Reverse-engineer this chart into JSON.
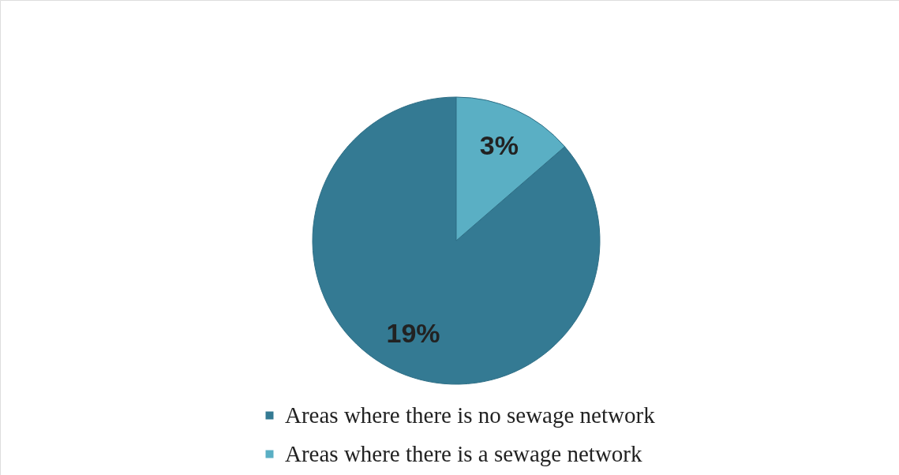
{
  "chart_data": {
    "type": "pie",
    "categories": [
      "Areas where there is no sewage network",
      "Areas where there is a sewage network"
    ],
    "values": [
      19,
      3
    ],
    "colors": [
      "#347a93",
      "#5aafc4"
    ],
    "value_labels": [
      "19%",
      "3%"
    ],
    "legend": "bottom"
  }
}
